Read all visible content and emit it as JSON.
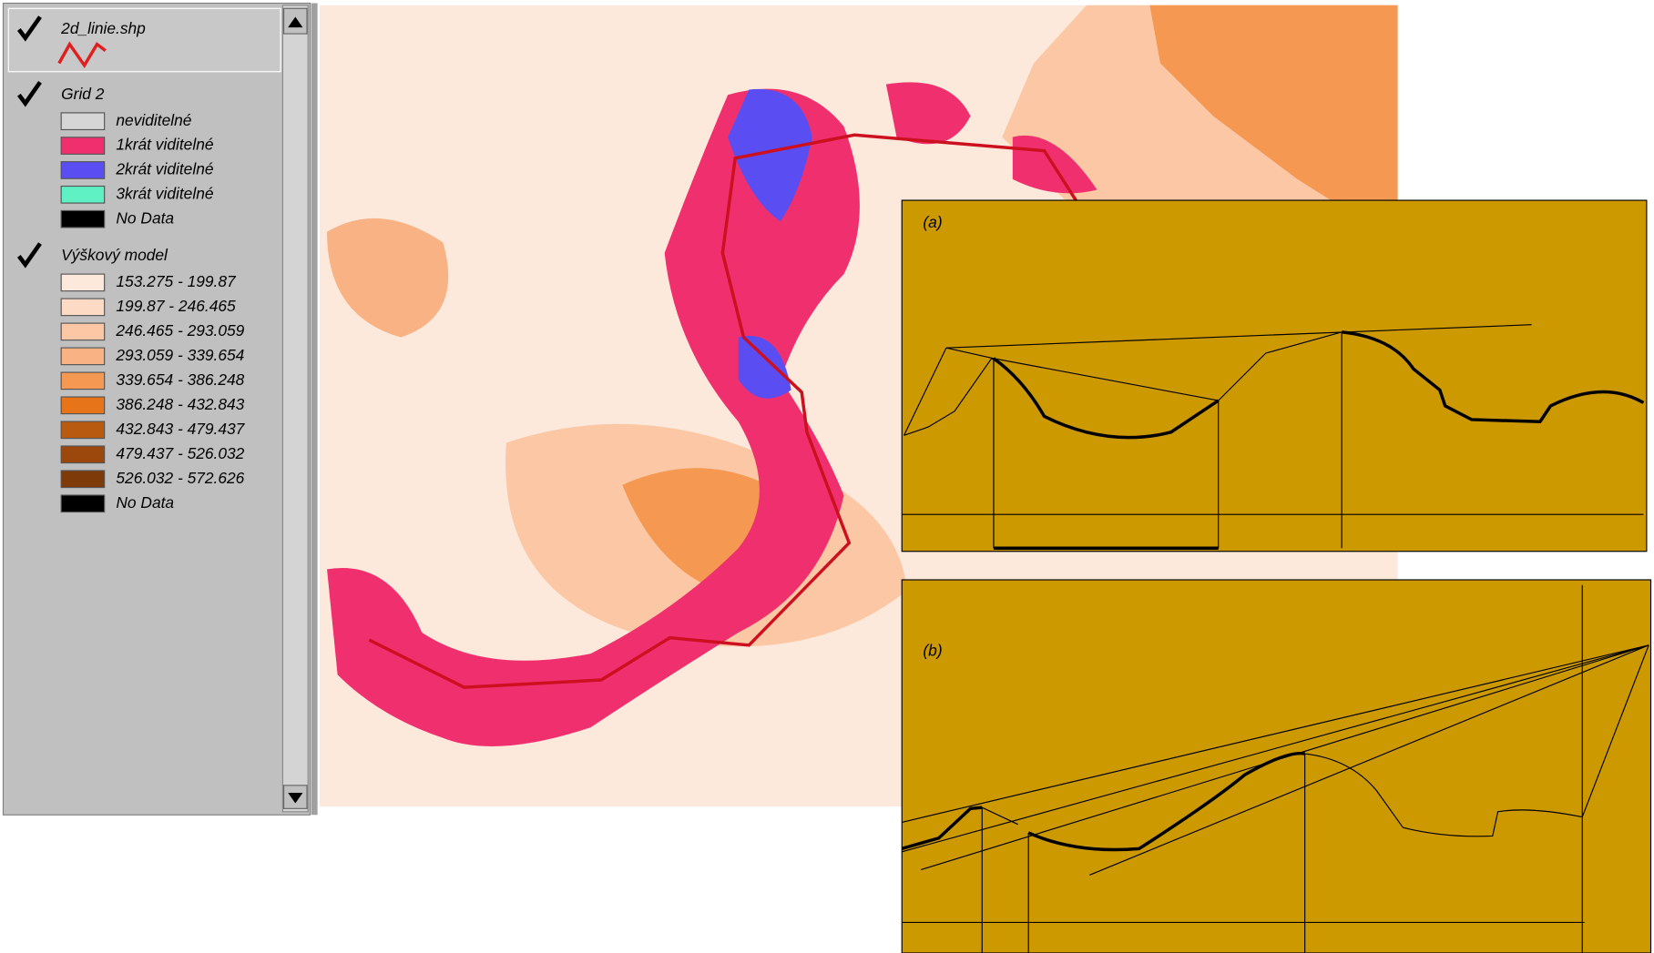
{
  "legend": {
    "layers": [
      {
        "title": "2d_linie.shp",
        "items": []
      },
      {
        "title": "Grid 2",
        "items": [
          {
            "label": "neviditelné",
            "color": "#d6d6d6"
          },
          {
            "label": "1krát viditelné",
            "color": "#f0306e"
          },
          {
            "label": "2krát viditelné",
            "color": "#5a4ef2"
          },
          {
            "label": "3krát viditelné",
            "color": "#5ff0c4"
          },
          {
            "label": "No Data",
            "color": "#000000"
          }
        ]
      },
      {
        "title": "Výškový model",
        "items": [
          {
            "label": "153.275 - 199.87",
            "color": "#fde9dc"
          },
          {
            "label": "199.87 - 246.465",
            "color": "#fcdac4"
          },
          {
            "label": "246.465 - 293.059",
            "color": "#fbc7a4"
          },
          {
            "label": "293.059 - 339.654",
            "color": "#f8b283"
          },
          {
            "label": "339.654 - 386.248",
            "color": "#f59852"
          },
          {
            "label": "386.248 - 432.843",
            "color": "#e8741a"
          },
          {
            "label": "432.843 - 479.437",
            "color": "#b85a10"
          },
          {
            "label": "479.437 - 526.032",
            "color": "#9c480c"
          },
          {
            "label": "526.032 - 572.626",
            "color": "#7e3a08"
          },
          {
            "label": "No Data",
            "color": "#000000"
          }
        ]
      }
    ]
  },
  "profiles": {
    "a": {
      "label": "(a)"
    },
    "b": {
      "label": "(b)"
    }
  }
}
